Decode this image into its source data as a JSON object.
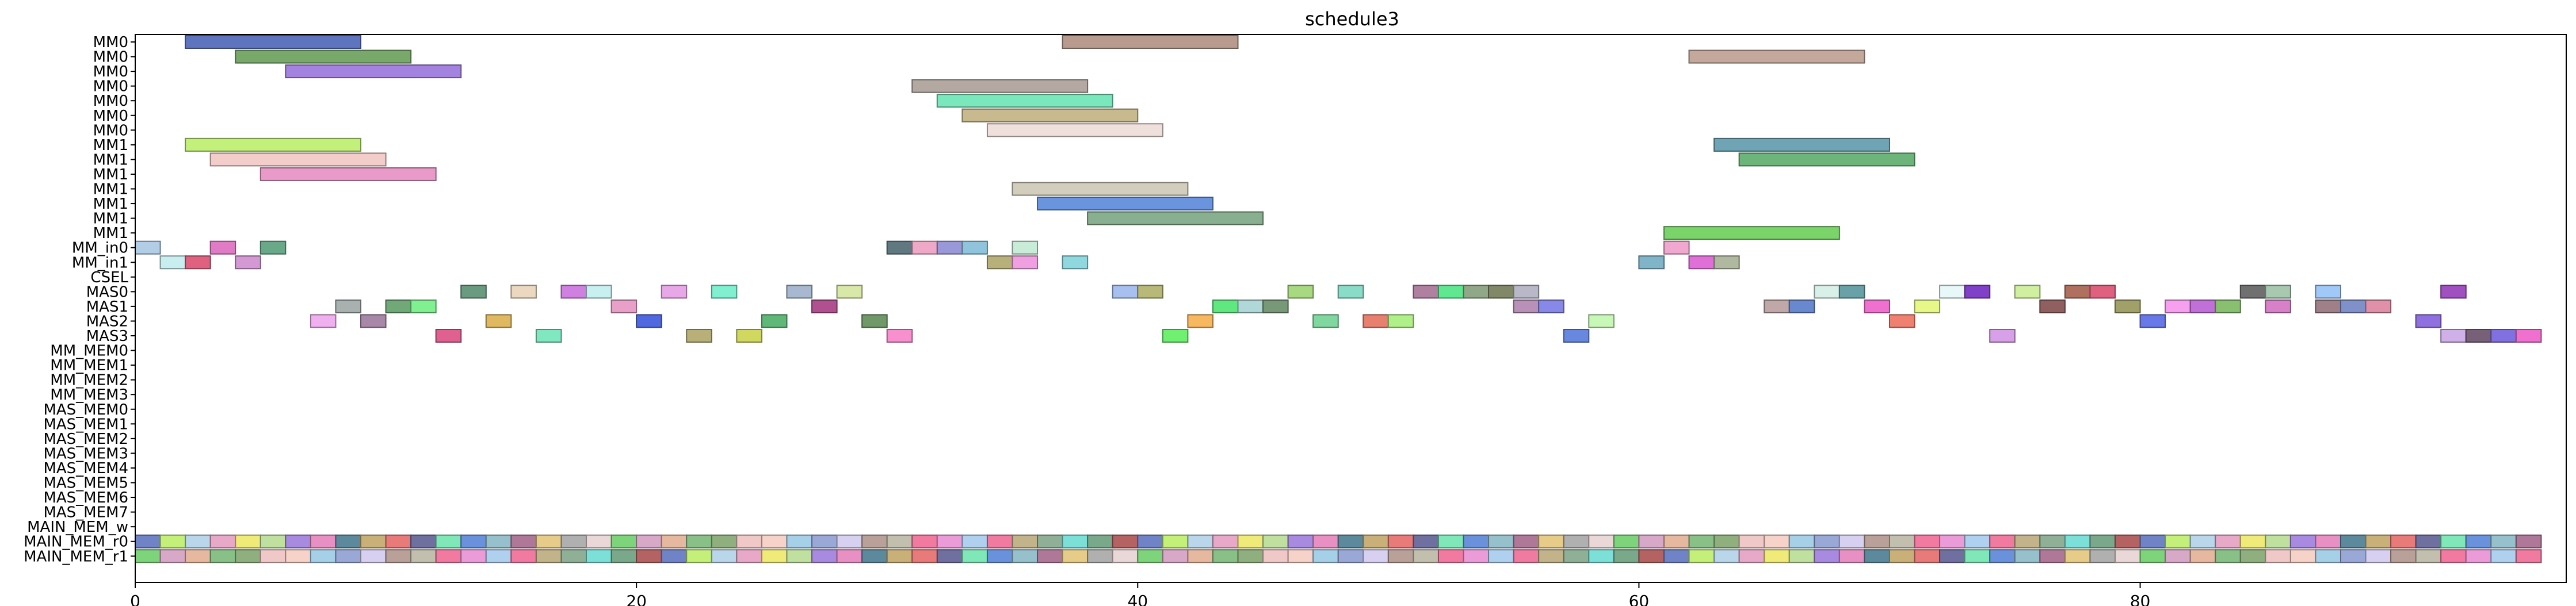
{
  "chart_data": {
    "type": "gantt",
    "title": "schedule3",
    "xlim": [
      0,
      97
    ],
    "xticks": [
      0,
      20,
      40,
      60,
      80
    ],
    "rows": [
      "MM0",
      "MM0",
      "MM0",
      "MM0",
      "MM0",
      "MM0",
      "MM0",
      "MM1",
      "MM1",
      "MM1",
      "MM1",
      "MM1",
      "MM1",
      "MM1",
      "MM_in0",
      "MM_in1",
      "CSEL",
      "MAS0",
      "MAS1",
      "MAS2",
      "MAS3",
      "MM_MEM0",
      "MM_MEM1",
      "MM_MEM2",
      "MM_MEM3",
      "MAS_MEM0",
      "MAS_MEM1",
      "MAS_MEM2",
      "MAS_MEM3",
      "MAS_MEM4",
      "MAS_MEM5",
      "MAS_MEM6",
      "MAS_MEM7",
      "MAIN_MEM_w",
      "MAIN_MEM_r0",
      "MAIN_MEM_r1"
    ],
    "palette": [
      "#6f83c6",
      "#8fb07e",
      "#a88be0",
      "#b9a199",
      "#80e8b8",
      "#c2b38a",
      "#ead8d8",
      "#c4f07a",
      "#f0c8c8",
      "#e890c4",
      "#c2bfae",
      "#6a92dc",
      "#8fb096",
      "#7dd47a",
      "#b9d6ea",
      "#f6d2c8",
      "#5c8a9c",
      "#f27aa0",
      "#96c0cc",
      "#7de0d8",
      "#d8a8c8",
      "#e8a8c8",
      "#a6d0e8",
      "#c8b078",
      "#eb9cd8",
      "#b07898",
      "#7aa88a",
      "#e6b8a0",
      "#f0ea78",
      "#9aa8d8",
      "#e87a7a",
      "#b0d0f0",
      "#e6cc88",
      "#b46262",
      "#88c088",
      "#c0e0a0",
      "#d8d0f0",
      "#7070a0",
      "#f07aa0",
      "#b0b0b0"
    ],
    "tasks": [
      {
        "row": 0,
        "start": 2,
        "end": 9,
        "color": "#5f74bf"
      },
      {
        "row": 0,
        "start": 37,
        "end": 44,
        "color": "#b99a8e"
      },
      {
        "row": 1,
        "start": 4,
        "end": 11,
        "color": "#78a86a"
      },
      {
        "row": 1,
        "start": 62,
        "end": 69,
        "color": "#c4a89c"
      },
      {
        "row": 2,
        "start": 6,
        "end": 13,
        "color": "#a482e0"
      },
      {
        "row": 3,
        "start": 31,
        "end": 38,
        "color": "#b3a8a2"
      },
      {
        "row": 4,
        "start": 32,
        "end": 39,
        "color": "#7ae8bc"
      },
      {
        "row": 5,
        "start": 33,
        "end": 40,
        "color": "#c9b98e"
      },
      {
        "row": 6,
        "start": 34,
        "end": 41,
        "color": "#efe0dc"
      },
      {
        "row": 7,
        "start": 2,
        "end": 9,
        "color": "#c2f07a"
      },
      {
        "row": 7,
        "start": 63,
        "end": 70,
        "color": "#6ea4b4"
      },
      {
        "row": 8,
        "start": 3,
        "end": 10,
        "color": "#f2cdca"
      },
      {
        "row": 8,
        "start": 64,
        "end": 71,
        "color": "#6cb47a"
      },
      {
        "row": 9,
        "start": 5,
        "end": 12,
        "color": "#ea9ac8"
      },
      {
        "row": 10,
        "start": 35,
        "end": 42,
        "color": "#d3cdbd"
      },
      {
        "row": 11,
        "start": 36,
        "end": 43,
        "color": "#6a94de"
      },
      {
        "row": 12,
        "start": 38,
        "end": 45,
        "color": "#88b090"
      },
      {
        "row": 13,
        "start": 61,
        "end": 68,
        "color": "#7ad46a"
      },
      {
        "row": 14,
        "start": 0,
        "end": 1,
        "color": "#b2cde6"
      },
      {
        "row": 14,
        "start": 3,
        "end": 4,
        "color": "#e07cc6"
      },
      {
        "row": 14,
        "start": 5,
        "end": 6,
        "color": "#6aa88a"
      },
      {
        "row": 14,
        "start": 30,
        "end": 31,
        "color": "#607880"
      },
      {
        "row": 14,
        "start": 31,
        "end": 32,
        "color": "#f0a8c8"
      },
      {
        "row": 14,
        "start": 32,
        "end": 33,
        "color": "#9a98d8"
      },
      {
        "row": 14,
        "start": 33,
        "end": 34,
        "color": "#90c4dc"
      },
      {
        "row": 14,
        "start": 35,
        "end": 36,
        "color": "#c8ecd8"
      },
      {
        "row": 14,
        "start": 61,
        "end": 62,
        "color": "#f0a8d0"
      },
      {
        "row": 15,
        "start": 1,
        "end": 2,
        "color": "#c8eef0"
      },
      {
        "row": 15,
        "start": 2,
        "end": 3,
        "color": "#e06080"
      },
      {
        "row": 15,
        "start": 4,
        "end": 5,
        "color": "#d498d4"
      },
      {
        "row": 15,
        "start": 34,
        "end": 35,
        "color": "#b8b07a"
      },
      {
        "row": 15,
        "start": 35,
        "end": 36,
        "color": "#f0a0e0"
      },
      {
        "row": 15,
        "start": 37,
        "end": 38,
        "color": "#90d8e0"
      },
      {
        "row": 15,
        "start": 60,
        "end": 61,
        "color": "#80b4c8"
      },
      {
        "row": 15,
        "start": 62,
        "end": 63,
        "color": "#e070d8"
      },
      {
        "row": 15,
        "start": 63,
        "end": 64,
        "color": "#b0b8a0"
      },
      {
        "row": 17,
        "start": 13,
        "end": 14,
        "color": "#6a9a80"
      },
      {
        "row": 17,
        "start": 15,
        "end": 16,
        "color": "#ecd8c0"
      },
      {
        "row": 17,
        "start": 17,
        "end": 18,
        "color": "#d080e0"
      },
      {
        "row": 17,
        "start": 18,
        "end": 19,
        "color": "#c8f0f0"
      },
      {
        "row": 17,
        "start": 21,
        "end": 22,
        "color": "#e8a8e8"
      },
      {
        "row": 17,
        "start": 23,
        "end": 24,
        "color": "#80f0d0"
      },
      {
        "row": 17,
        "start": 26,
        "end": 27,
        "color": "#a8b8d0"
      },
      {
        "row": 17,
        "start": 28,
        "end": 29,
        "color": "#d8e8a8"
      },
      {
        "row": 17,
        "start": 39,
        "end": 40,
        "color": "#a8c0f0"
      },
      {
        "row": 17,
        "start": 40,
        "end": 41,
        "color": "#b8b878"
      },
      {
        "row": 17,
        "start": 46,
        "end": 47,
        "color": "#a8d880"
      },
      {
        "row": 17,
        "start": 48,
        "end": 49,
        "color": "#88dcc8"
      },
      {
        "row": 17,
        "start": 51,
        "end": 52,
        "color": "#b080a0"
      },
      {
        "row": 17,
        "start": 52,
        "end": 53,
        "color": "#60e890"
      },
      {
        "row": 17,
        "start": 53,
        "end": 54,
        "color": "#90a888"
      },
      {
        "row": 17,
        "start": 54,
        "end": 55,
        "color": "#808868"
      },
      {
        "row": 17,
        "start": 55,
        "end": 56,
        "color": "#b8b8c8"
      },
      {
        "row": 17,
        "start": 67,
        "end": 68,
        "color": "#d8f0e8"
      },
      {
        "row": 17,
        "start": 68,
        "end": 69,
        "color": "#6aa0a8"
      },
      {
        "row": 17,
        "start": 72,
        "end": 73,
        "color": "#e8f8f8"
      },
      {
        "row": 17,
        "start": 73,
        "end": 74,
        "color": "#8040c8"
      },
      {
        "row": 17,
        "start": 75,
        "end": 76,
        "color": "#d0f0a0"
      },
      {
        "row": 17,
        "start": 77,
        "end": 78,
        "color": "#b07060"
      },
      {
        "row": 17,
        "start": 78,
        "end": 79,
        "color": "#e06080"
      },
      {
        "row": 17,
        "start": 84,
        "end": 85,
        "color": "#707070"
      },
      {
        "row": 17,
        "start": 85,
        "end": 86,
        "color": "#a8c8b0"
      },
      {
        "row": 17,
        "start": 87,
        "end": 88,
        "color": "#a0c8f8"
      },
      {
        "row": 17,
        "start": 92,
        "end": 93,
        "color": "#a050c0"
      },
      {
        "row": 18,
        "start": 8,
        "end": 9,
        "color": "#a8b0b0"
      },
      {
        "row": 18,
        "start": 10,
        "end": 11,
        "color": "#70a878"
      },
      {
        "row": 18,
        "start": 11,
        "end": 12,
        "color": "#80f090"
      },
      {
        "row": 18,
        "start": 19,
        "end": 20,
        "color": "#e8a0c8"
      },
      {
        "row": 18,
        "start": 27,
        "end": 28,
        "color": "#b05090"
      },
      {
        "row": 18,
        "start": 43,
        "end": 44,
        "color": "#60e880"
      },
      {
        "row": 18,
        "start": 44,
        "end": 45,
        "color": "#b0d8d8"
      },
      {
        "row": 18,
        "start": 45,
        "end": 46,
        "color": "#789878"
      },
      {
        "row": 18,
        "start": 55,
        "end": 56,
        "color": "#b890b8"
      },
      {
        "row": 18,
        "start": 56,
        "end": 57,
        "color": "#8888e8"
      },
      {
        "row": 18,
        "start": 65,
        "end": 66,
        "color": "#c0a8a8"
      },
      {
        "row": 18,
        "start": 66,
        "end": 67,
        "color": "#6888d0"
      },
      {
        "row": 18,
        "start": 69,
        "end": 70,
        "color": "#f070d0"
      },
      {
        "row": 18,
        "start": 71,
        "end": 72,
        "color": "#e8f888"
      },
      {
        "row": 18,
        "start": 76,
        "end": 77,
        "color": "#906060"
      },
      {
        "row": 18,
        "start": 79,
        "end": 80,
        "color": "#a0a068"
      },
      {
        "row": 18,
        "start": 81,
        "end": 82,
        "color": "#f8a0f0"
      },
      {
        "row": 18,
        "start": 82,
        "end": 83,
        "color": "#c070d8"
      },
      {
        "row": 18,
        "start": 83,
        "end": 84,
        "color": "#88c070"
      },
      {
        "row": 18,
        "start": 85,
        "end": 86,
        "color": "#d880c8"
      },
      {
        "row": 18,
        "start": 87,
        "end": 88,
        "color": "#a08088"
      },
      {
        "row": 18,
        "start": 88,
        "end": 89,
        "color": "#8090c8"
      },
      {
        "row": 18,
        "start": 89,
        "end": 90,
        "color": "#e090a8"
      },
      {
        "row": 19,
        "start": 7,
        "end": 8,
        "color": "#f0b0f0"
      },
      {
        "row": 19,
        "start": 9,
        "end": 10,
        "color": "#a888a8"
      },
      {
        "row": 19,
        "start": 14,
        "end": 15,
        "color": "#e0b860"
      },
      {
        "row": 19,
        "start": 20,
        "end": 21,
        "color": "#5068e0"
      },
      {
        "row": 19,
        "start": 25,
        "end": 26,
        "color": "#60b878"
      },
      {
        "row": 19,
        "start": 29,
        "end": 30,
        "color": "#709868"
      },
      {
        "row": 19,
        "start": 42,
        "end": 43,
        "color": "#f8b860"
      },
      {
        "row": 19,
        "start": 47,
        "end": 48,
        "color": "#80d8a0"
      },
      {
        "row": 19,
        "start": 49,
        "end": 50,
        "color": "#e88070"
      },
      {
        "row": 19,
        "start": 50,
        "end": 51,
        "color": "#b0f088"
      },
      {
        "row": 19,
        "start": 58,
        "end": 59,
        "color": "#c8f8b8"
      },
      {
        "row": 19,
        "start": 70,
        "end": 71,
        "color": "#f08070"
      },
      {
        "row": 19,
        "start": 80,
        "end": 81,
        "color": "#6878e8"
      },
      {
        "row": 19,
        "start": 91,
        "end": 92,
        "color": "#9070e0"
      },
      {
        "row": 20,
        "start": 12,
        "end": 13,
        "color": "#e06090"
      },
      {
        "row": 20,
        "start": 16,
        "end": 17,
        "color": "#80e8c0"
      },
      {
        "row": 20,
        "start": 22,
        "end": 23,
        "color": "#b8b078"
      },
      {
        "row": 20,
        "start": 24,
        "end": 25,
        "color": "#d0d860"
      },
      {
        "row": 20,
        "start": 30,
        "end": 31,
        "color": "#f890d0"
      },
      {
        "row": 20,
        "start": 41,
        "end": 42,
        "color": "#70f070"
      },
      {
        "row": 20,
        "start": 57,
        "end": 58,
        "color": "#6888e0"
      },
      {
        "row": 20,
        "start": 74,
        "end": 75,
        "color": "#d8a0e8"
      },
      {
        "row": 20,
        "start": 92,
        "end": 93,
        "color": "#d0b0e8"
      },
      {
        "row": 20,
        "start": 93,
        "end": 94,
        "color": "#786078"
      },
      {
        "row": 20,
        "start": 94,
        "end": 95,
        "color": "#8070e0"
      },
      {
        "row": 20,
        "start": 95,
        "end": 96,
        "color": "#f070d0"
      }
    ],
    "memory_rows": [
      34,
      35
    ],
    "memory_range": [
      0,
      96
    ]
  }
}
